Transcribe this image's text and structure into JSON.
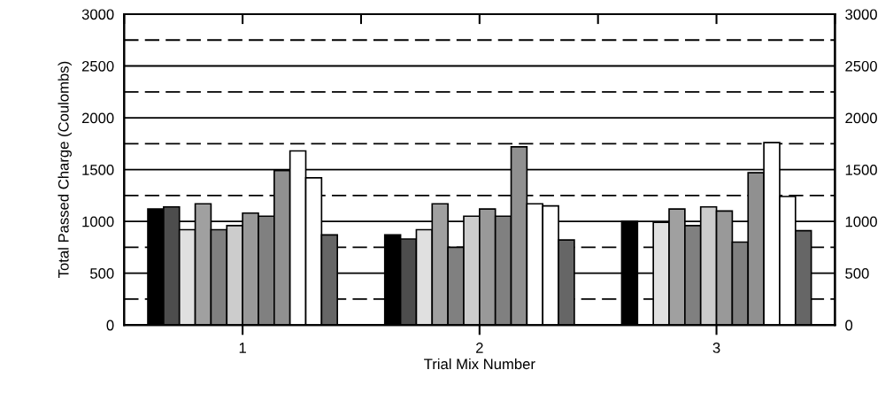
{
  "chart_data": {
    "type": "bar",
    "xlabel": "Trial Mix Number",
    "ylabel": "Total Passed Charge (Coulombs)",
    "categories": [
      "1",
      "2",
      "3"
    ],
    "series": [
      {
        "color": "#000000",
        "values": [
          1120,
          870,
          1000
        ]
      },
      {
        "color": "#4d4d4d",
        "values": [
          1140,
          830,
          null
        ]
      },
      {
        "color": "#e0e0e0",
        "values": [
          920,
          920,
          990
        ]
      },
      {
        "color": "#a0a0a0",
        "values": [
          1170,
          1170,
          1120
        ]
      },
      {
        "color": "#808080",
        "values": [
          920,
          750,
          960
        ]
      },
      {
        "color": "#cccccc",
        "values": [
          960,
          1050,
          1140
        ]
      },
      {
        "color": "#999999",
        "values": [
          1080,
          1120,
          1100
        ]
      },
      {
        "color": "#808080",
        "values": [
          1050,
          1050,
          800
        ]
      },
      {
        "color": "#909090",
        "values": [
          1490,
          1720,
          1470
        ]
      },
      {
        "color": "#ffffff",
        "values": [
          1680,
          1170,
          1760
        ]
      },
      {
        "color": "#ffffff",
        "values": [
          1420,
          1150,
          1240
        ]
      },
      {
        "color": "#666666",
        "values": [
          870,
          820,
          910
        ]
      }
    ],
    "ylim": [
      0,
      3000
    ],
    "yticks": [
      0,
      500,
      1000,
      1500,
      2000,
      2500,
      3000
    ],
    "y2lim": [
      0,
      3000
    ],
    "y2ticks": [
      0,
      500,
      1000,
      1500,
      2000,
      2500,
      3000
    ],
    "grid": "y",
    "legend": false,
    "ref_lines": [
      {
        "axis": "y",
        "value": 250,
        "line_style": "dashed",
        "color": "#000000"
      },
      {
        "axis": "y",
        "value": 750,
        "line_style": "dashed",
        "color": "#000000"
      },
      {
        "axis": "y",
        "value": 1250,
        "line_style": "dashed",
        "color": "#000000"
      },
      {
        "axis": "y",
        "value": 1750,
        "line_style": "dashed",
        "color": "#000000"
      },
      {
        "axis": "y",
        "value": 2250,
        "line_style": "dashed",
        "color": "#000000"
      },
      {
        "axis": "y",
        "value": 2750,
        "line_style": "dashed",
        "color": "#000000"
      }
    ]
  }
}
